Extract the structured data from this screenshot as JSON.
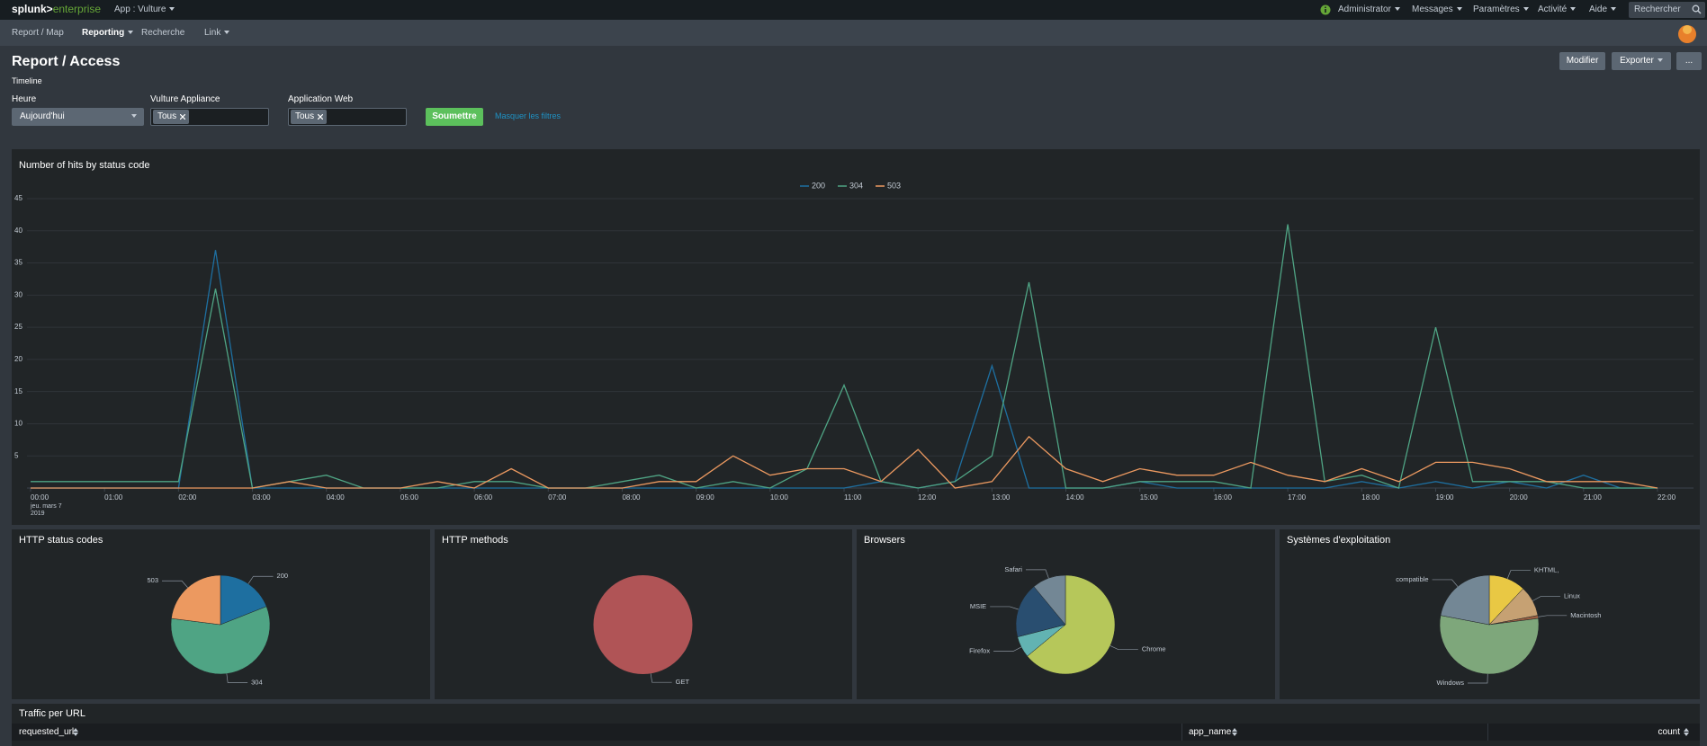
{
  "nav": {
    "brand": [
      "splunk>",
      "enterprise"
    ],
    "app": "App : Vulture",
    "menu": [
      "Administrator",
      "Messages",
      "Paramètres",
      "Activité",
      "Aide"
    ],
    "search": "Rechercher"
  },
  "subnav": [
    "Report / Map",
    "Reporting",
    "Recherche",
    "Link"
  ],
  "header": {
    "title": "Report / Access",
    "subtitle": "Timeline",
    "buttons": [
      "Modifier",
      "Exporter",
      "..."
    ]
  },
  "filters": [
    {
      "label": "Heure",
      "value": "Aujourd'hui"
    },
    {
      "label": "Vulture Appliance",
      "value": "Tous"
    },
    {
      "label": "Application Web",
      "value": "Tous"
    }
  ],
  "submit": "Soumettre",
  "hide_filters": "Masquer les filtres",
  "chart_data": [
    {
      "type": "line",
      "title": "Number of hits by status code",
      "categories": [
        "00:00",
        null,
        "01:00",
        null,
        "02:00",
        null,
        "03:00",
        null,
        "04:00",
        null,
        "05:00",
        null,
        "06:00",
        null,
        "07:00",
        null,
        "08:00",
        null,
        "09:00",
        null,
        "10:00",
        null,
        "11:00",
        null,
        "12:00",
        null,
        "13:00",
        null,
        "14:00",
        null,
        "15:00",
        null,
        "16:00",
        null,
        "17:00",
        null,
        "18:00",
        null,
        "19:00",
        null,
        "20:00",
        null,
        "21:00",
        null,
        "22:00"
      ],
      "date_label": [
        "jeu. mars 7",
        "2019"
      ],
      "series": [
        {
          "name": "200",
          "color": "#1e6fa0",
          "values": [
            0,
            0,
            0,
            0,
            0,
            37,
            0,
            0,
            0,
            0,
            0,
            0,
            0,
            0,
            0,
            0,
            0,
            0,
            0,
            0,
            0,
            0,
            0,
            1,
            0,
            1,
            19,
            0,
            0,
            0,
            1,
            0,
            0,
            0,
            0,
            0,
            1,
            0,
            1,
            0,
            1,
            0,
            2,
            0,
            0
          ]
        },
        {
          "name": "304",
          "color": "#4fa484",
          "values": [
            1,
            1,
            1,
            1,
            1,
            31,
            0,
            1,
            2,
            0,
            0,
            0,
            1,
            1,
            0,
            0,
            1,
            2,
            0,
            1,
            0,
            3,
            16,
            1,
            0,
            1,
            5,
            32,
            0,
            0,
            1,
            1,
            1,
            0,
            41,
            1,
            2,
            0,
            25,
            1,
            1,
            1,
            0,
            0,
            0
          ]
        },
        {
          "name": "503",
          "color": "#ec9960",
          "values": [
            0,
            0,
            0,
            0,
            0,
            0,
            0,
            1,
            0,
            0,
            0,
            1,
            0,
            3,
            0,
            0,
            0,
            1,
            1,
            5,
            2,
            3,
            3,
            1,
            6,
            0,
            1,
            8,
            3,
            1,
            3,
            2,
            2,
            4,
            2,
            1,
            3,
            1,
            4,
            4,
            3,
            1,
            1,
            1,
            0
          ]
        }
      ],
      "ylim": [
        0,
        45
      ],
      "yticks": [
        5,
        10,
        15,
        20,
        25,
        30,
        35,
        40,
        45
      ],
      "grid": true,
      "legend": "top"
    },
    {
      "type": "pie",
      "title": "HTTP status codes",
      "categories": [
        "200",
        "304",
        "503"
      ],
      "values": [
        19,
        58,
        23
      ],
      "colors": [
        "#1e6fa0",
        "#4fa484",
        "#ec9960"
      ]
    },
    {
      "type": "pie",
      "title": "HTTP methods",
      "categories": [
        "GET"
      ],
      "values": [
        100
      ],
      "colors": [
        "#b05456"
      ]
    },
    {
      "type": "pie",
      "title": "Browsers",
      "categories": [
        "Chrome",
        "Firefox",
        "MSIE",
        "Safari"
      ],
      "values": [
        64,
        7,
        18,
        11
      ],
      "colors": [
        "#b6c75a",
        "#62b3b2",
        "#294e70",
        "#738795"
      ]
    },
    {
      "type": "pie",
      "title": "Systèmes d'exploitation",
      "categories": [
        "KHTML,",
        "Linux",
        "Macintosh",
        "Windows",
        "compatible"
      ],
      "values": [
        12,
        10,
        1,
        55,
        22
      ],
      "colors": [
        "#e9c844",
        "#c6a173",
        "#985e41",
        "#7ea77b",
        "#738795"
      ]
    }
  ],
  "table": {
    "title": "Traffic per URL",
    "columns": [
      "requested_url",
      "app_name",
      "count"
    ]
  }
}
